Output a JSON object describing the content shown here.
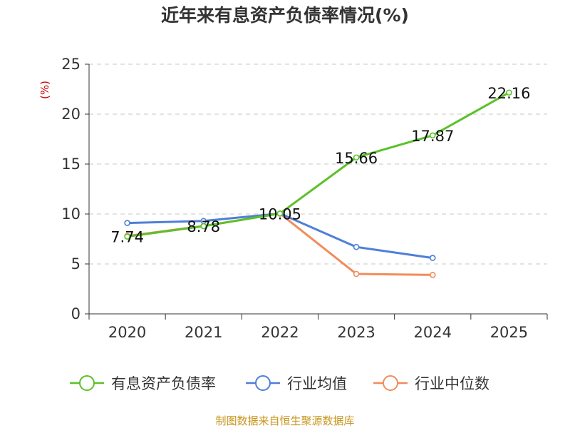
{
  "chart_data": {
    "type": "line",
    "title": "近年来有息资产负债率情况(%)",
    "xlabel": "",
    "ylabel": "(%)",
    "categories": [
      "2020",
      "2021",
      "2022",
      "2023",
      "2024",
      "2025"
    ],
    "ylim": [
      0,
      25
    ],
    "yticks": [
      "0",
      "5",
      "10",
      "15",
      "20",
      "25"
    ],
    "grid": "horizontal dashed",
    "legend_position": "bottom",
    "series": [
      {
        "name": "有息资产负债率",
        "color": "#5bc12a",
        "values": [
          7.74,
          8.78,
          10.05,
          15.66,
          17.87,
          22.16
        ],
        "labels": [
          "7.74",
          "8.78",
          "10.05",
          "15.66",
          "17.87",
          "22.16"
        ]
      },
      {
        "name": "行业均值",
        "color": "#4e7fd8",
        "values": [
          9.1,
          9.3,
          10.05,
          6.7,
          5.6,
          null
        ]
      },
      {
        "name": "行业中位数",
        "color": "#f28c5b",
        "values": [
          7.8,
          8.8,
          10.05,
          4.0,
          3.9,
          null
        ]
      }
    ]
  },
  "source_text": "制图数据来自恒生聚源数据库"
}
